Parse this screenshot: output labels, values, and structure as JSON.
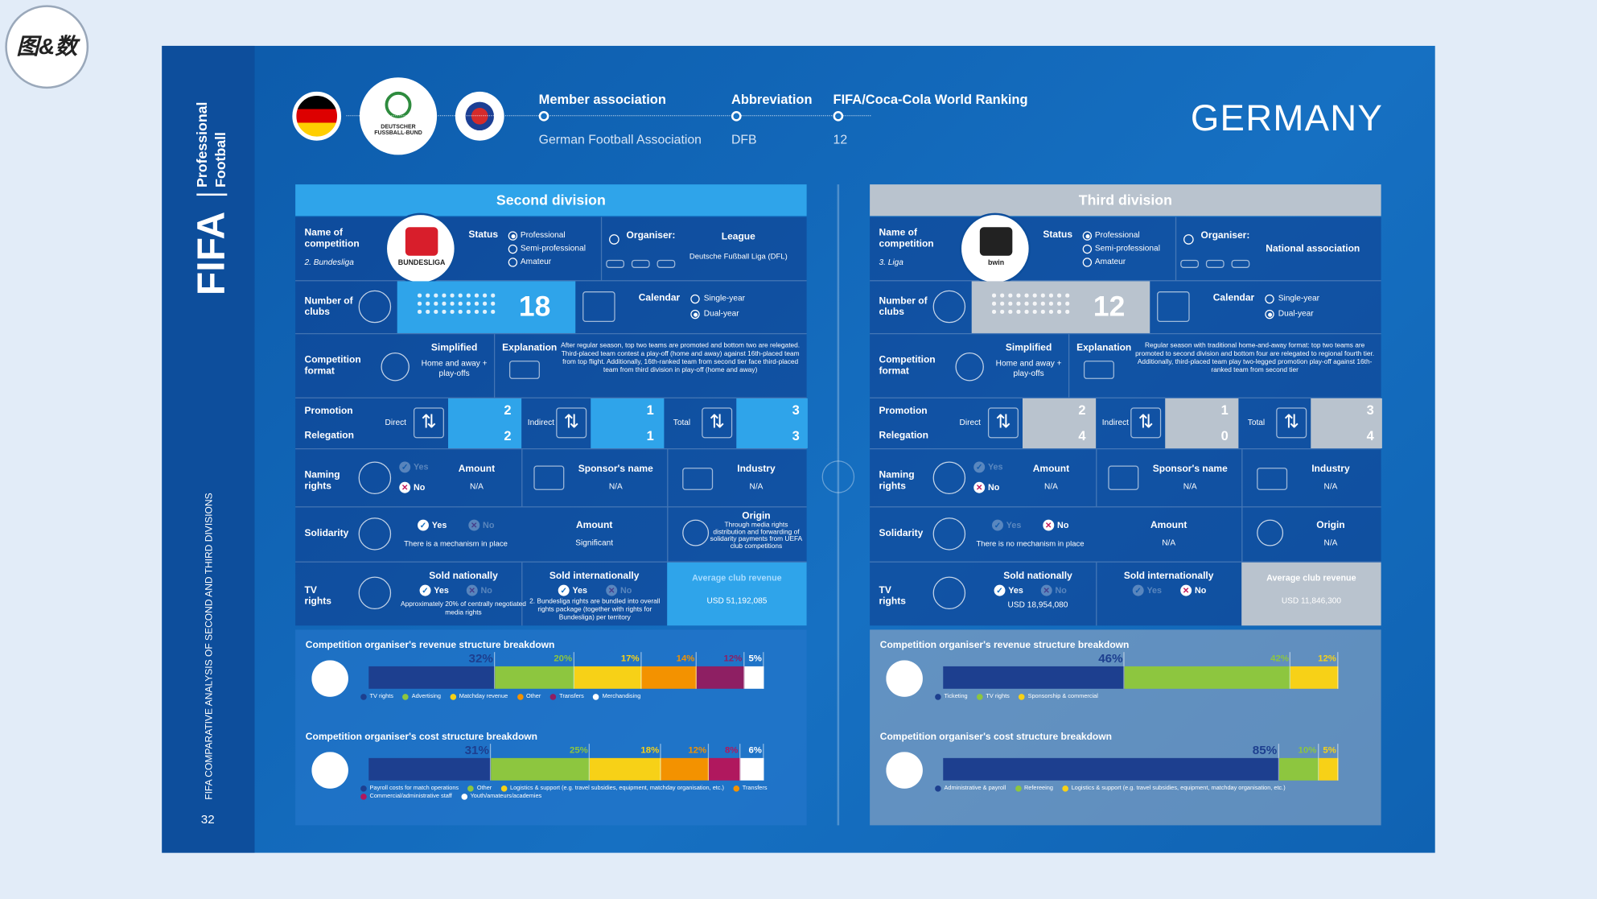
{
  "logo": "图&数",
  "sidebar": {
    "brand": "FIFA",
    "line1": "Professional",
    "line2": "Football",
    "subtitle": "FIFA COMPARATIVE ANALYSIS OF SECOND AND THIRD DIVISIONS",
    "page": "32"
  },
  "header": {
    "dfb": "DEUTSCHER FUSSBALL-BUND",
    "country": "GERMANY",
    "fields": [
      {
        "label": "Member association",
        "value": "German Football Association"
      },
      {
        "label": "Abbreviation",
        "value": "DFB"
      },
      {
        "label": "FIFA/Coca-Cola World Ranking",
        "value": 12
      }
    ]
  },
  "labels": {
    "name": "Name of competition",
    "status": "Status",
    "status_options": [
      "Professional",
      "Semi-professional",
      "Amateur"
    ],
    "organiser": "Organiser:",
    "clubs": "Number of clubs",
    "calendar": "Calendar",
    "calendar_options": [
      "Single-year",
      "Dual-year"
    ],
    "format": "Competition format",
    "simplified": "Simplified",
    "explanation": "Explanation",
    "promotion": "Promotion",
    "relegation": "Relegation",
    "direct": "Direct",
    "indirect": "Indirect",
    "total": "Total",
    "naming": "Naming rights",
    "yes": "Yes",
    "no": "No",
    "amount": "Amount",
    "sponsor": "Sponsor's name",
    "industry": "Industry",
    "solidarity": "Solidarity",
    "origin": "Origin",
    "tv": "TV rights",
    "sold_nationally": "Sold nationally",
    "sold_internationally": "Sold internationally",
    "average_revenue": "Average club revenue",
    "revenue_title": "Competition organiser's revenue structure breakdown",
    "cost_title": "Competition organiser's cost structure breakdown"
  },
  "divisions": [
    {
      "title": "Second division",
      "competition": "2. Bundesliga",
      "logo_text": "BUNDESLIGA",
      "status": "Professional",
      "organiser": "League",
      "organiser_detail": "Deutsche Fußball Liga (DFL)",
      "clubs": 18,
      "calendar": "Dual-year",
      "simplified": "Home and away + play-offs",
      "explanation": "After regular season, top two teams are promoted and bottom two are relegated. Third-placed team contest a play-off (home and away) against 16th-placed team from top flight. Additionally, 16th-ranked team from second tier face third-placed team from third division in play-off (home and away)",
      "promotion": {
        "direct": 2,
        "indirect": 1,
        "total": 3
      },
      "relegation": {
        "direct": 2,
        "indirect": 1,
        "total": 3
      },
      "naming_rights": "No",
      "naming_amount": "N/A",
      "sponsor": "N/A",
      "industry": "N/A",
      "solidarity": "Yes",
      "solidarity_note": "There is a mechanism in place",
      "solidarity_amount": "Significant",
      "origin": "Through media rights distribution and forwarding of solidarity payments from UEFA club competitions",
      "tv_national": "Yes",
      "tv_national_note": "Approximately 20% of centrally negotiated media rights",
      "tv_international": "Yes",
      "tv_international_note": "2. Bundesliga rights are bundled into overall rights package (together with rights for Bundesliga) per territory",
      "average_revenue": "USD 51,192,085",
      "revenue": {
        "categories": [
          "TV rights",
          "Advertising",
          "Matchday revenue",
          "Other",
          "Transfers",
          "Merchandising"
        ],
        "colors": [
          "#1d3f8f",
          "#8dc63f",
          "#f7d117",
          "#f39200",
          "#8e1f63",
          "#ffffff"
        ],
        "values": [
          32,
          20,
          17,
          14,
          12,
          5
        ],
        "value_labels": [
          "32%",
          "20%",
          "17%",
          "14%",
          "12%",
          "5%"
        ]
      },
      "cost": {
        "categories": [
          "Payroll costs for match operations",
          "Other",
          "Logistics & support (e.g. travel subsidies, equipment, matchday organisation, etc.)",
          "Transfers",
          "Commercial/administrative staff",
          "Youth/amateurs/academies"
        ],
        "colors": [
          "#1d3f8f",
          "#8dc63f",
          "#f7d117",
          "#f39200",
          "#b0185e",
          "#ffffff"
        ],
        "values": [
          31,
          25,
          18,
          12,
          8,
          6
        ],
        "value_labels": [
          "31%",
          "25%",
          "18%",
          "12%",
          "8%",
          "6%"
        ]
      }
    },
    {
      "title": "Third division",
      "competition": "3. Liga",
      "logo_text": "bwin",
      "status": "Professional",
      "organiser": "National association",
      "clubs": 12,
      "calendar": "Dual-year",
      "simplified": "Home and away + play-offs",
      "explanation": "Regular season with traditional home-and-away format: top two teams are promoted to second division and bottom four are relegated to regional fourth tier. Additionally, third-placed team play two-legged promotion play-off against 16th-ranked team from second tier",
      "promotion": {
        "direct": 2,
        "indirect": 1,
        "total": 3
      },
      "relegation": {
        "direct": 4,
        "indirect": 0,
        "total": 4
      },
      "naming_rights": "No",
      "naming_amount": "N/A",
      "sponsor": "N/A",
      "industry": "N/A",
      "solidarity": "No",
      "solidarity_note": "There is no mechanism in place",
      "solidarity_amount": "N/A",
      "origin": "N/A",
      "tv_national": "Yes",
      "tv_national_note": "USD 18,954,080",
      "tv_international": "No",
      "average_revenue": "USD 11,846,300",
      "revenue": {
        "categories": [
          "Ticketing",
          "TV rights",
          "Sponsorship & commercial"
        ],
        "colors": [
          "#1d3f8f",
          "#8dc63f",
          "#f7d117"
        ],
        "values": [
          46,
          42,
          12
        ],
        "value_labels": [
          "46%",
          "42%",
          "12%"
        ]
      },
      "cost": {
        "categories": [
          "Administrative & payroll",
          "Refereeing",
          "Logistics & support (e.g. travel subsidies, equipment, matchday organisation, etc.)"
        ],
        "colors": [
          "#1d3f8f",
          "#8dc63f",
          "#f7d117"
        ],
        "values": [
          85,
          10,
          5
        ],
        "value_labels": [
          "85%",
          "10%",
          "5%"
        ]
      }
    }
  ]
}
